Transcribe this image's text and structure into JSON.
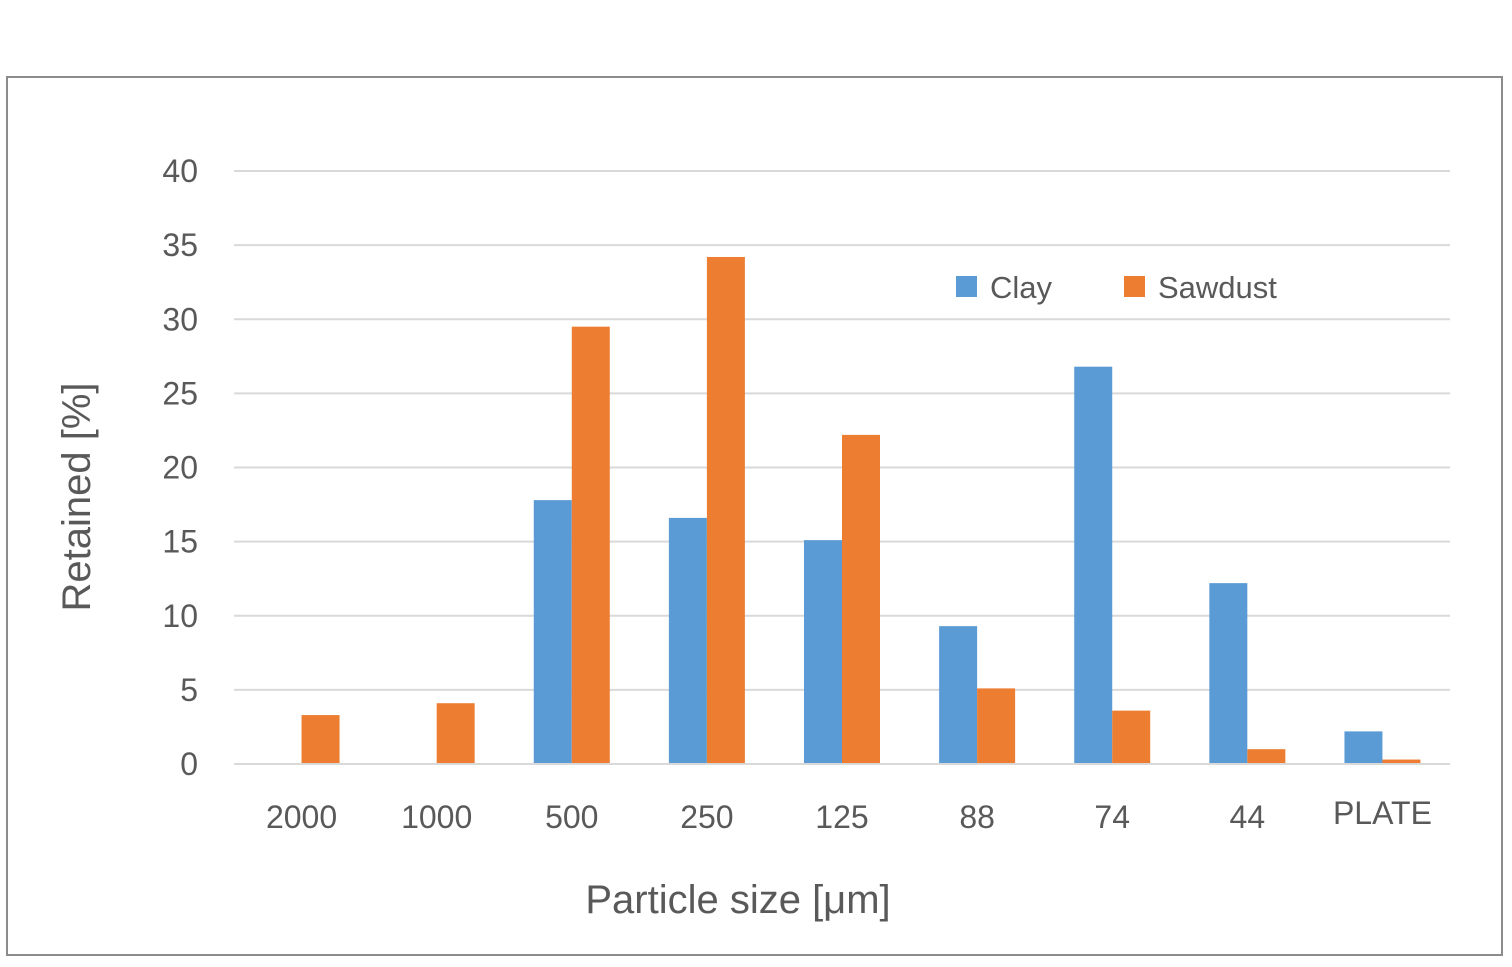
{
  "chart_data": {
    "type": "bar",
    "categories": [
      "2000",
      "1000",
      "500",
      "250",
      "125",
      "88",
      "74",
      "44",
      "PLATE"
    ],
    "series": [
      {
        "name": "Clay",
        "color": "#5b9bd5",
        "values": [
          0,
          0,
          17.8,
          16.6,
          15.1,
          9.3,
          26.8,
          12.2,
          2.2
        ]
      },
      {
        "name": "Sawdust",
        "color": "#ed7d31",
        "values": [
          3.3,
          4.1,
          29.5,
          34.2,
          22.2,
          5.1,
          3.6,
          1.0,
          0.3
        ]
      }
    ],
    "y_ticks": [
      "0",
      "5",
      "10",
      "15",
      "20",
      "25",
      "30",
      "35",
      "40"
    ],
    "xlabel": "Particle size [μm]",
    "ylabel": "Retained [%]",
    "ylim": [
      0,
      40
    ],
    "grid": "horizontal",
    "legend": "top-right"
  }
}
